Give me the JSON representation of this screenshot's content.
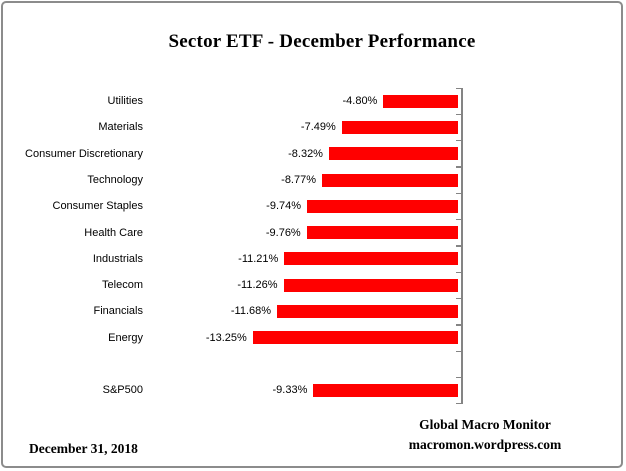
{
  "title": "Sector ETF - December Performance",
  "footer": {
    "date": "December 31, 2018",
    "source_line1": "Global Macro Monitor",
    "source_line2": "macromon.wordpress.com"
  },
  "colors": {
    "bar": "#FF0000",
    "axis": "#848484",
    "border": "#8C8C8C",
    "text": "#000000"
  },
  "chart_data": {
    "type": "bar",
    "orientation": "horizontal",
    "title": "Sector ETF - December Performance",
    "categories": [
      "Utilities",
      "Materials",
      "Consumer Discretionary",
      "Technology",
      "Consumer Staples",
      "Health Care",
      "Industrials",
      "Telecom",
      "Financials",
      "Energy",
      "S&P500"
    ],
    "values": [
      -4.8,
      -7.49,
      -8.32,
      -8.77,
      -9.74,
      -9.76,
      -11.21,
      -11.26,
      -11.68,
      -13.25,
      -9.33
    ],
    "data_labels": [
      "-4.80%",
      "-7.49%",
      "-8.32%",
      "-8.77%",
      "-9.74%",
      "-9.76%",
      "-11.21%",
      "-11.26%",
      "-11.68%",
      "-13.25%",
      "-9.33%"
    ],
    "xlim": [
      -14,
      0
    ],
    "xlabel": "",
    "ylabel": "",
    "grid": false,
    "legend": false,
    "bar_color": "#FF0000",
    "category_axis_side": "right",
    "blank_row_before_last_category": true
  }
}
